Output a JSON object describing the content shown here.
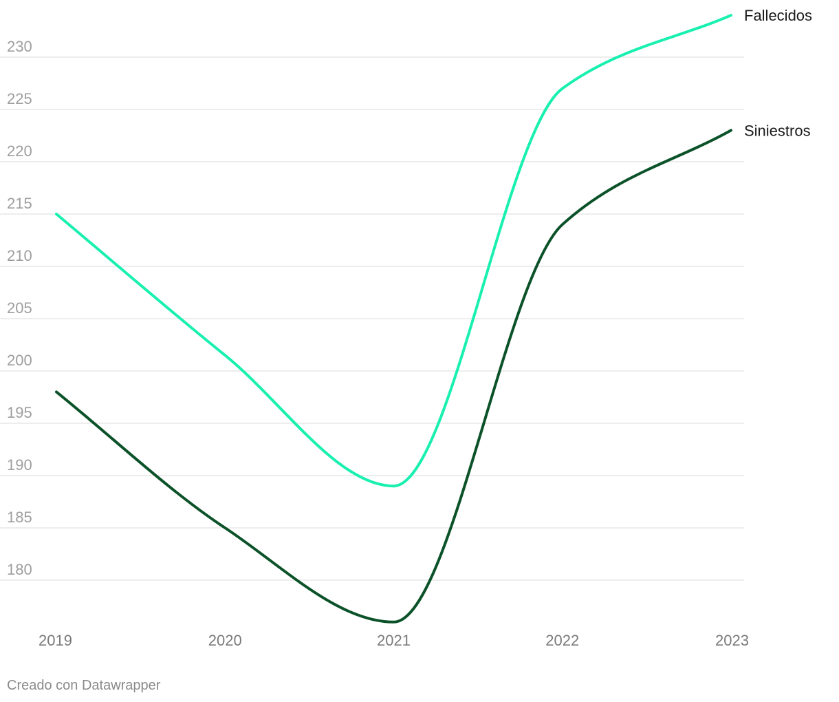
{
  "chart_data": {
    "type": "line",
    "x": [
      "2019",
      "2020",
      "2021",
      "2022",
      "2023"
    ],
    "series": [
      {
        "name": "Fallecidos",
        "values": [
          215,
          201.5,
          189,
          227,
          234
        ],
        "color": "#19f0b0"
      },
      {
        "name": "Siniestros",
        "values": [
          198,
          185,
          176,
          214,
          223
        ],
        "color": "#0b5229"
      }
    ],
    "yticks": [
      180,
      185,
      190,
      195,
      200,
      205,
      210,
      215,
      220,
      225,
      230
    ],
    "ylim": [
      176,
      234
    ],
    "grid": true,
    "legend": "direct labels at line ends",
    "title": "",
    "xlabel": "",
    "ylabel": ""
  },
  "footer": {
    "credit": "Creado con Datawrapper"
  }
}
